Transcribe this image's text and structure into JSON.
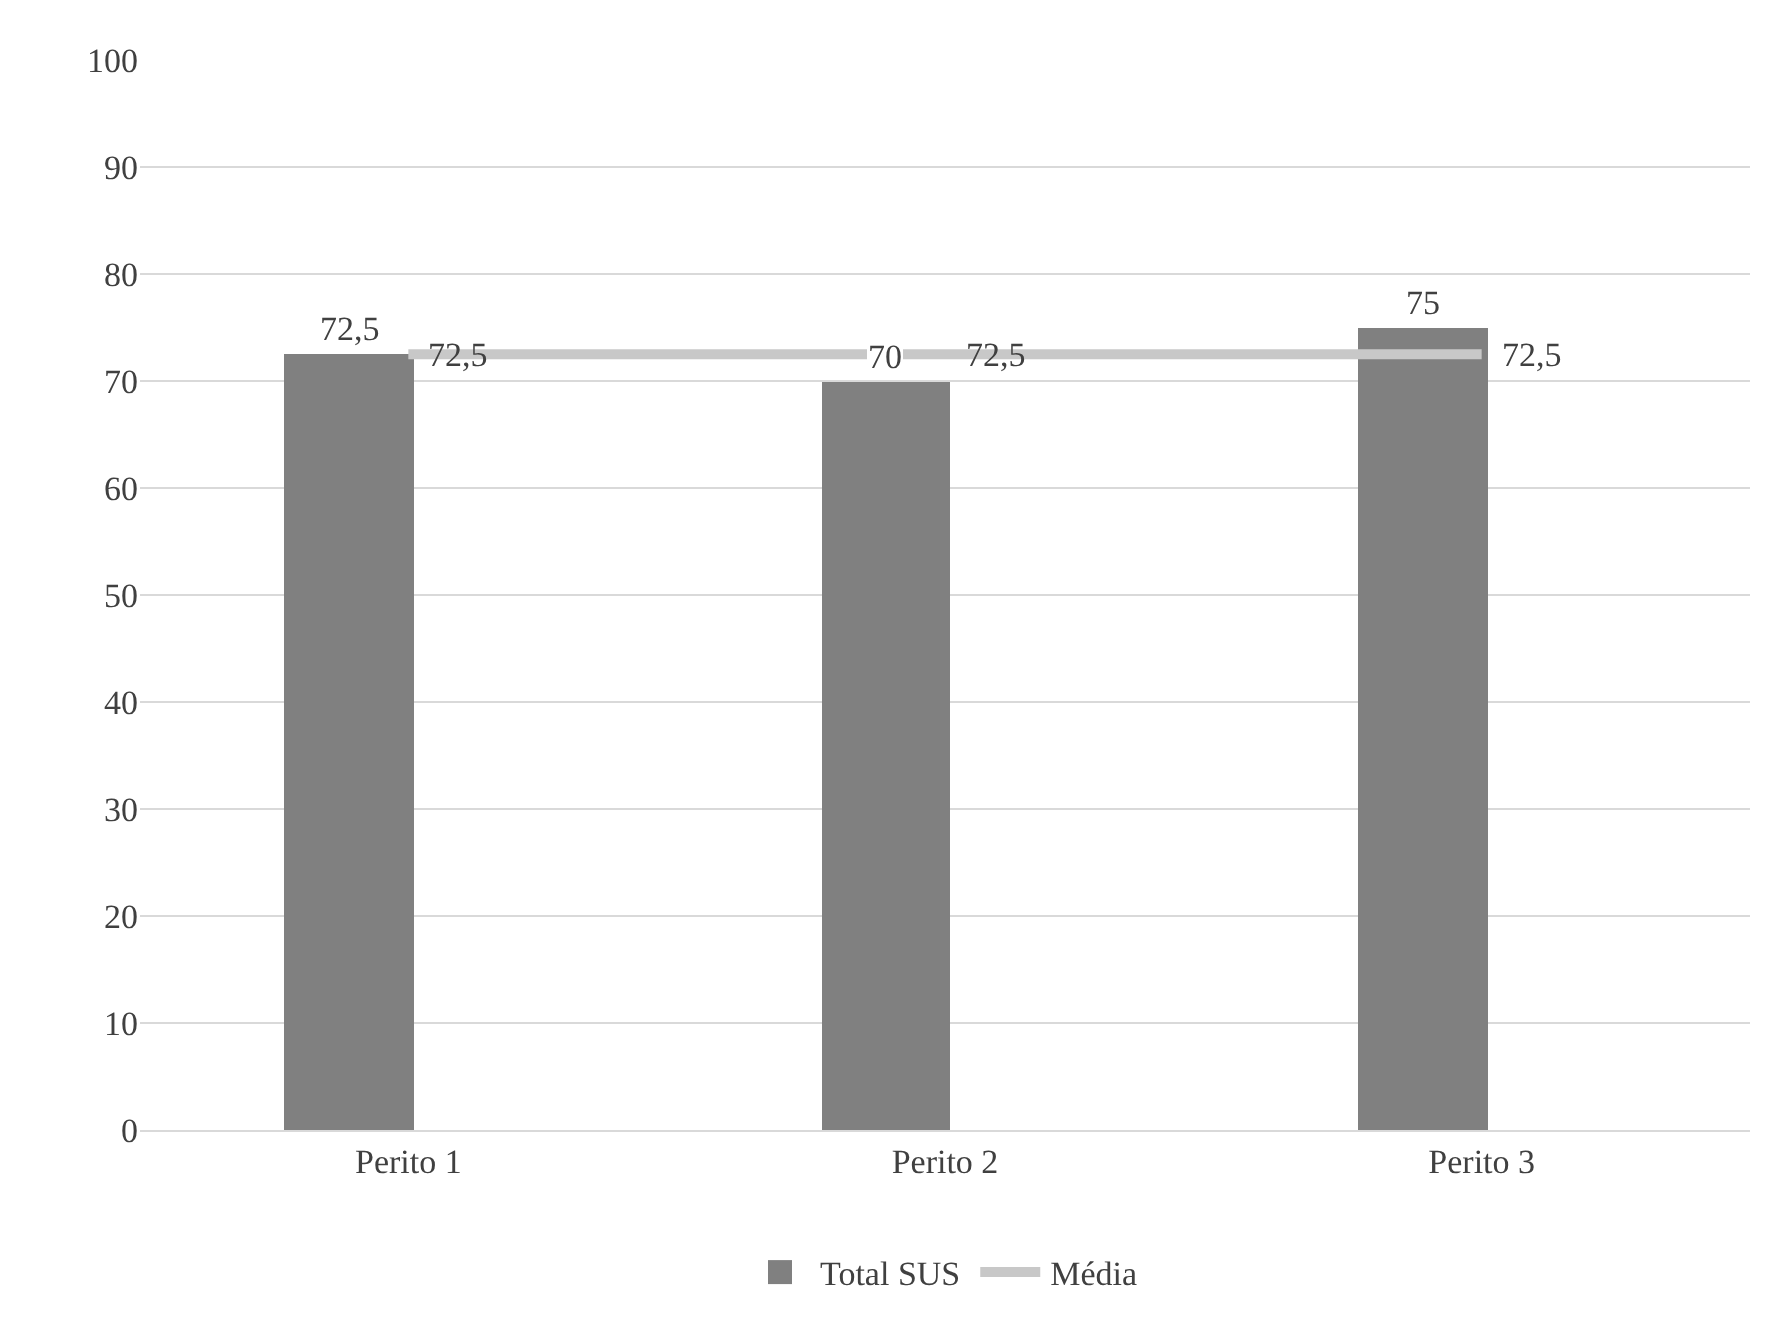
{
  "chart_data": {
    "type": "bar",
    "categories": [
      "Perito 1",
      "Perito 2",
      "Perito 3"
    ],
    "series": [
      {
        "name": "Total SUS",
        "color": "#808080",
        "values": [
          72.5,
          70,
          75
        ],
        "value_labels": [
          "72,5",
          "70",
          "75"
        ]
      },
      {
        "name": "Média",
        "type": "line",
        "color": "#c8c8c8",
        "values": [
          72.5,
          72.5,
          72.5
        ],
        "value_labels": [
          "72,5",
          "72,5",
          "72,5"
        ]
      }
    ],
    "ylim": [
      0,
      100
    ],
    "yticks": [
      0,
      10,
      20,
      30,
      40,
      50,
      60,
      70,
      80,
      90,
      100
    ],
    "grid": "y",
    "legend": "bottom",
    "marker": "none",
    "line_style": "solid"
  }
}
